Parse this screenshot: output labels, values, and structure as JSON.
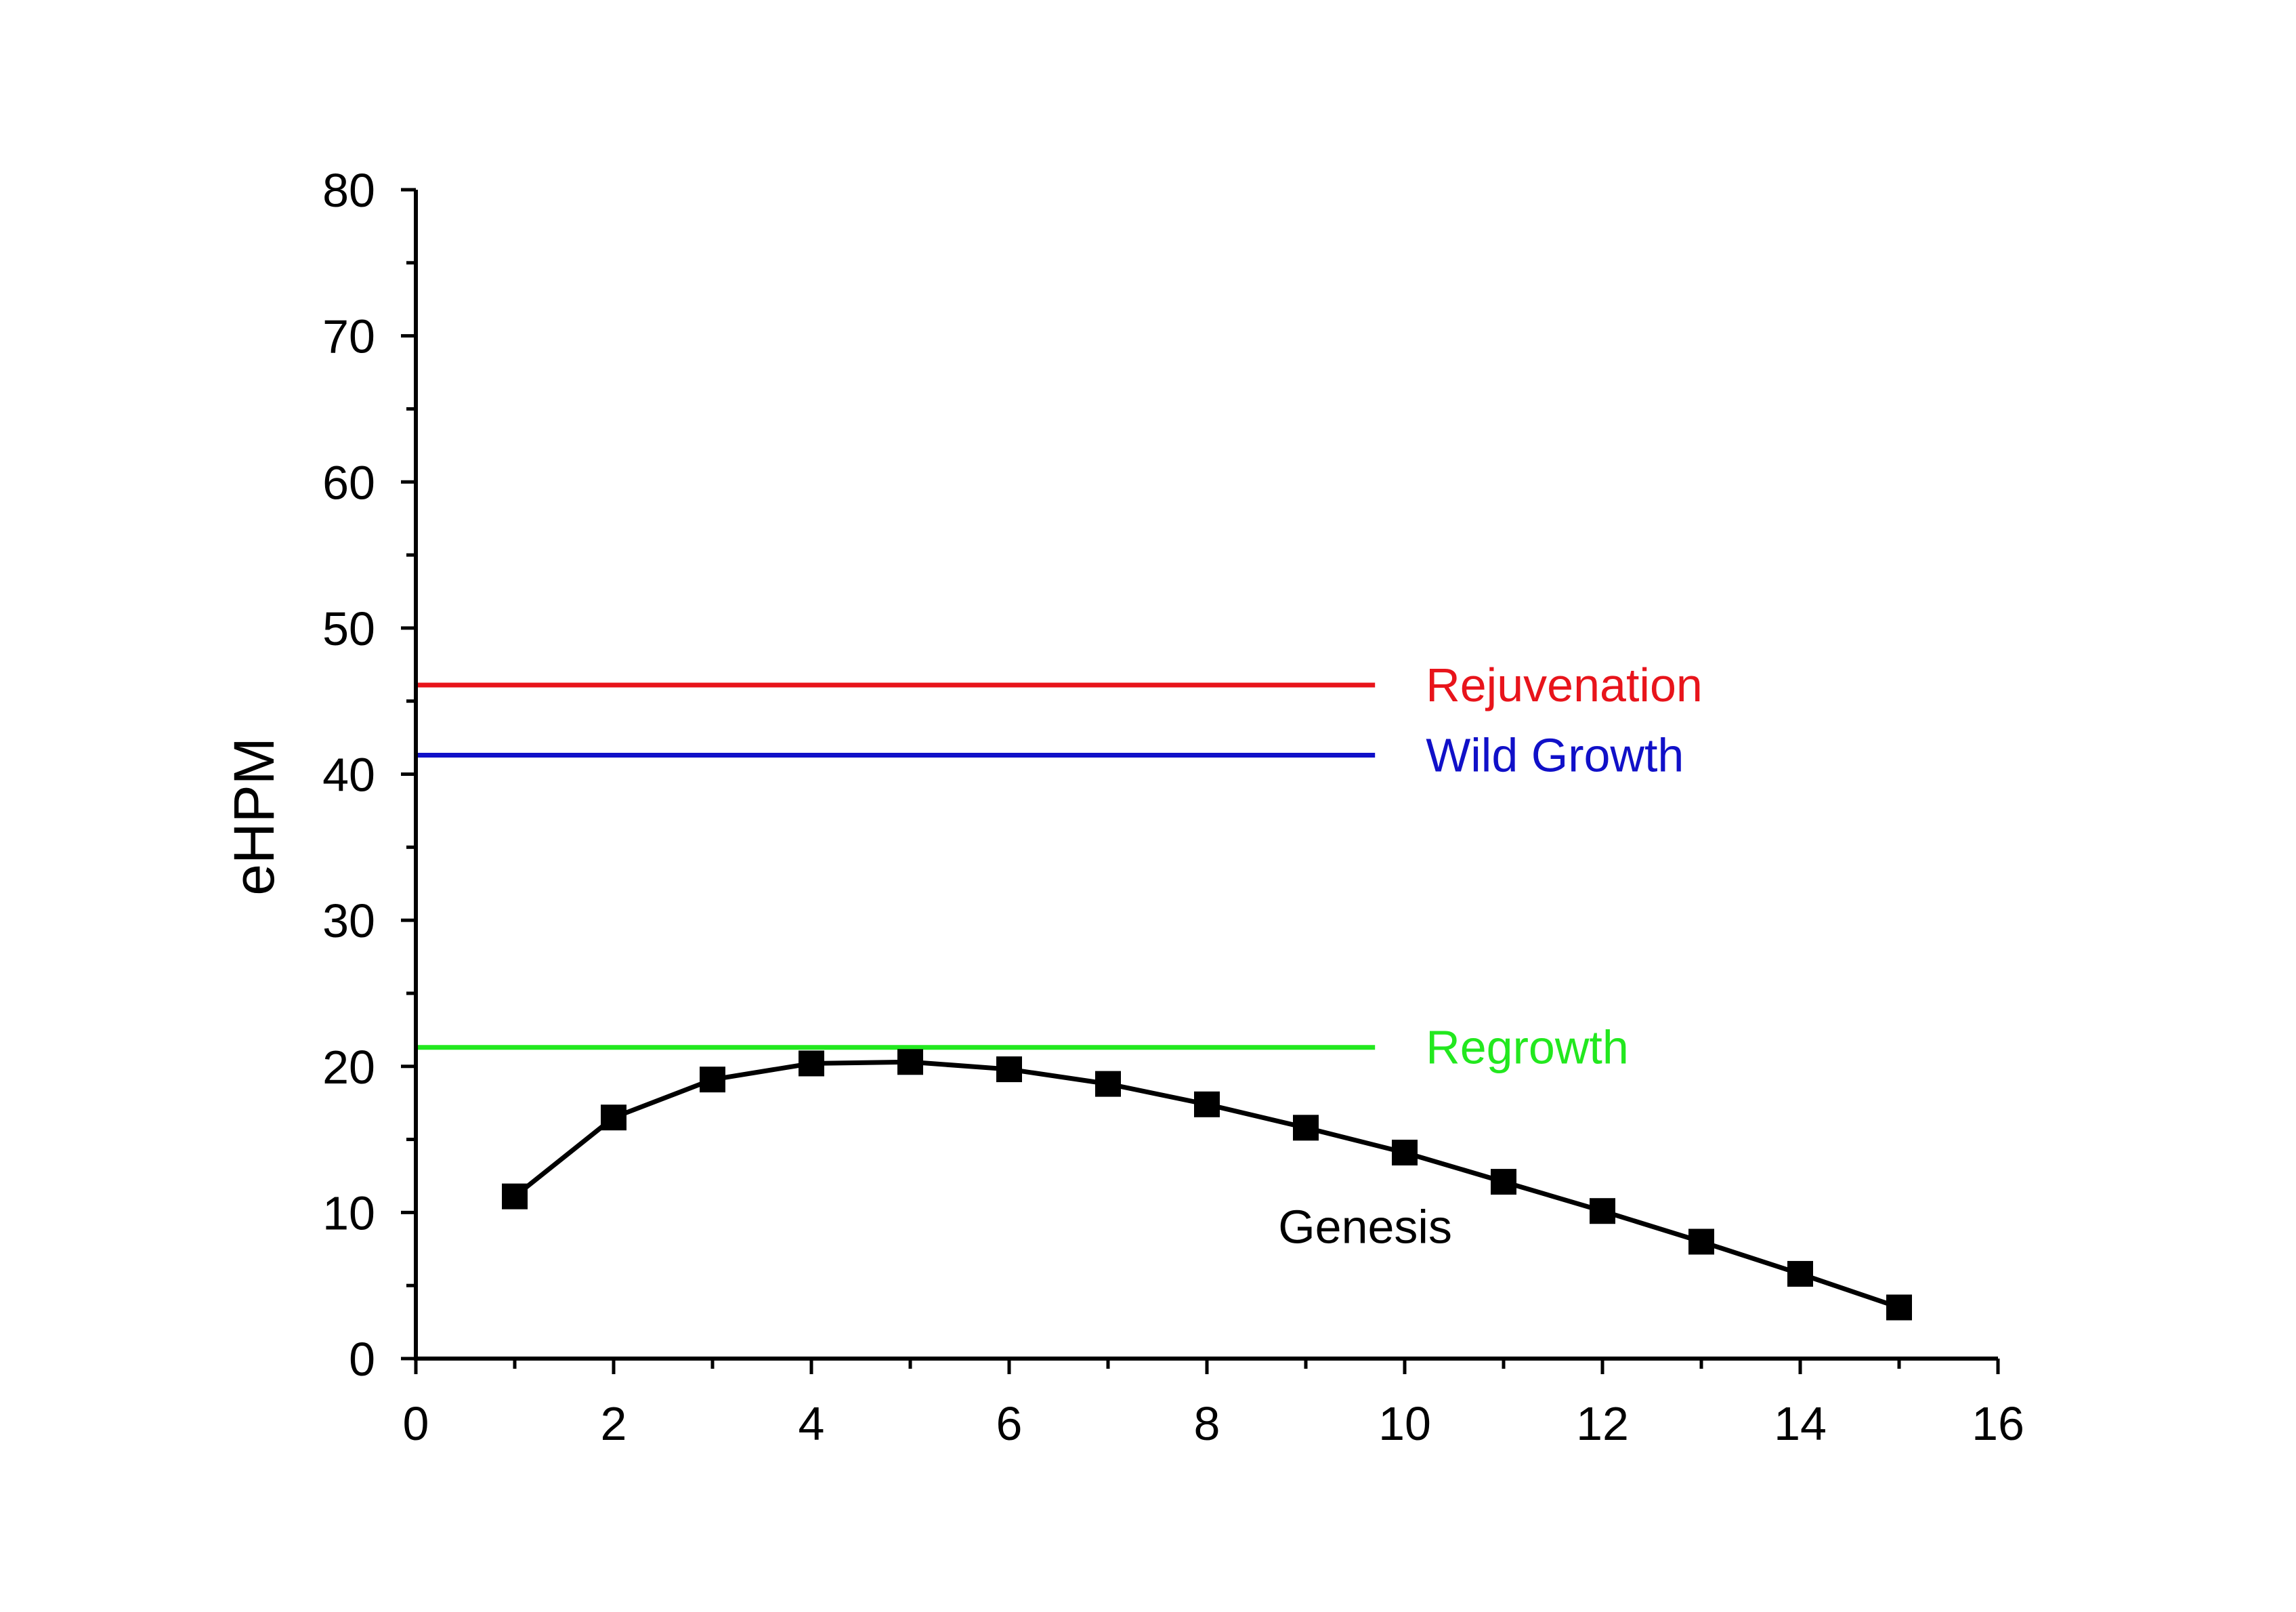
{
  "chart_data": {
    "type": "line",
    "title": "",
    "xlabel": "",
    "ylabel": "eHPM",
    "xlim": [
      0,
      16
    ],
    "ylim": [
      0,
      80
    ],
    "xticks": [
      "0",
      "2",
      "4",
      "6",
      "8",
      "10",
      "12",
      "14",
      "16"
    ],
    "yticks": [
      "0",
      "10",
      "20",
      "30",
      "40",
      "50",
      "60",
      "70",
      "80"
    ],
    "grid": false,
    "series": [
      {
        "name": "Genesis",
        "color": "#000000",
        "marker": "square",
        "x": [
          1,
          2,
          3,
          4,
          5,
          6,
          7,
          8,
          9,
          10,
          11,
          12,
          13,
          14,
          15
        ],
        "y": [
          11.1,
          16.5,
          19.1,
          20.2,
          20.3,
          19.8,
          18.8,
          17.4,
          15.8,
          14.1,
          12.1,
          10.1,
          8.0,
          5.8,
          3.5
        ]
      }
    ],
    "reference_lines": [
      {
        "name": "Rejuvenation",
        "y": 46.1,
        "x_range": [
          0,
          9.7
        ],
        "color": "#e8141b"
      },
      {
        "name": "Wild Growth",
        "y": 41.3,
        "x_range": [
          0,
          9.7
        ],
        "color": "#1010c8"
      },
      {
        "name": "Regrowth",
        "y": 21.3,
        "x_range": [
          0,
          9.7
        ],
        "color": "#22e81e"
      }
    ]
  }
}
